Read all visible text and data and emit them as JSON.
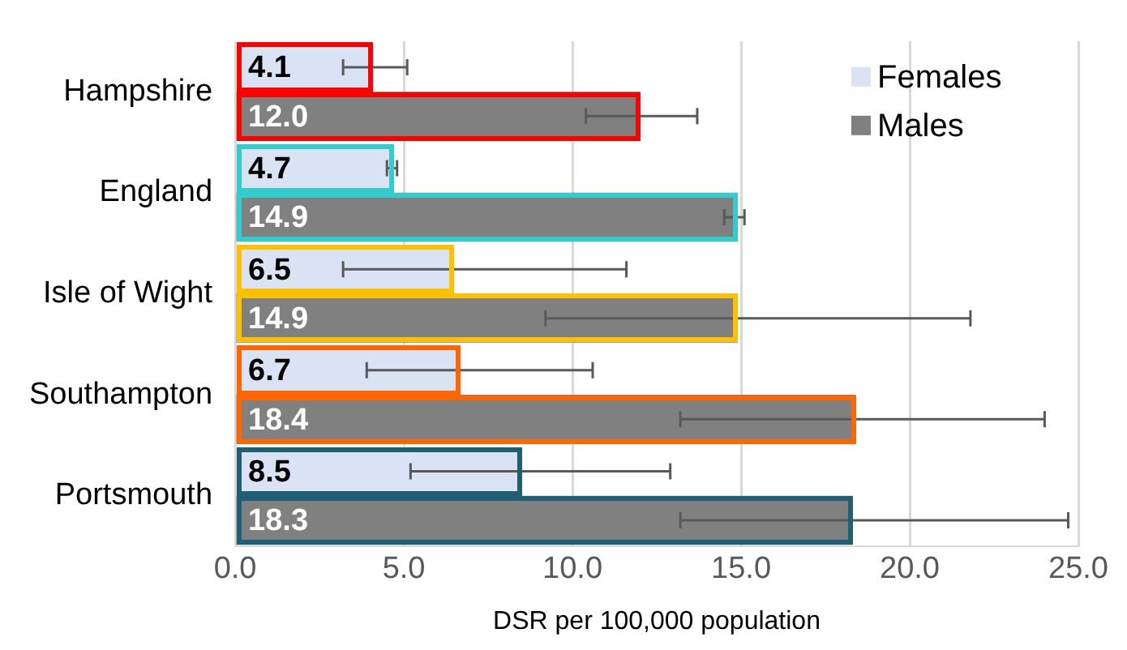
{
  "chart_data": {
    "type": "bar",
    "orientation": "horizontal",
    "xlabel": "DSR per 100,000 population",
    "categories": [
      "Hampshire",
      "England",
      "Isle of Wight",
      "Southampton",
      "Portsmouth"
    ],
    "series": [
      {
        "name": "Females",
        "color": "#dae3f3",
        "values": [
          4.1,
          4.7,
          6.5,
          6.7,
          8.5
        ],
        "value_labels": [
          "4.1",
          "4.7",
          "6.5",
          "6.7",
          "8.5"
        ],
        "errors": [
          [
            3.2,
            5.1
          ],
          [
            4.5,
            4.8
          ],
          [
            3.2,
            11.6
          ],
          [
            3.9,
            10.6
          ],
          [
            5.2,
            12.9
          ]
        ]
      },
      {
        "name": "Males",
        "color": "#808080",
        "values": [
          12.0,
          14.9,
          14.9,
          18.4,
          18.3
        ],
        "value_labels": [
          "12.0",
          "14.9",
          "14.9",
          "18.4",
          "18.3"
        ],
        "errors": [
          [
            10.4,
            13.7
          ],
          [
            14.5,
            15.1
          ],
          [
            9.2,
            21.8
          ],
          [
            13.2,
            24.0
          ],
          [
            13.2,
            24.7
          ]
        ]
      }
    ],
    "xlim": [
      0,
      25
    ],
    "xticks": [
      {
        "value": 0,
        "label": "0.0"
      },
      {
        "value": 5,
        "label": "5.0"
      },
      {
        "value": 10,
        "label": "10.0"
      },
      {
        "value": 15,
        "label": "15.0"
      },
      {
        "value": 20,
        "label": "20.0"
      },
      {
        "value": 25,
        "label": "25.0"
      }
    ],
    "grid": "x",
    "legend": "top right"
  }
}
